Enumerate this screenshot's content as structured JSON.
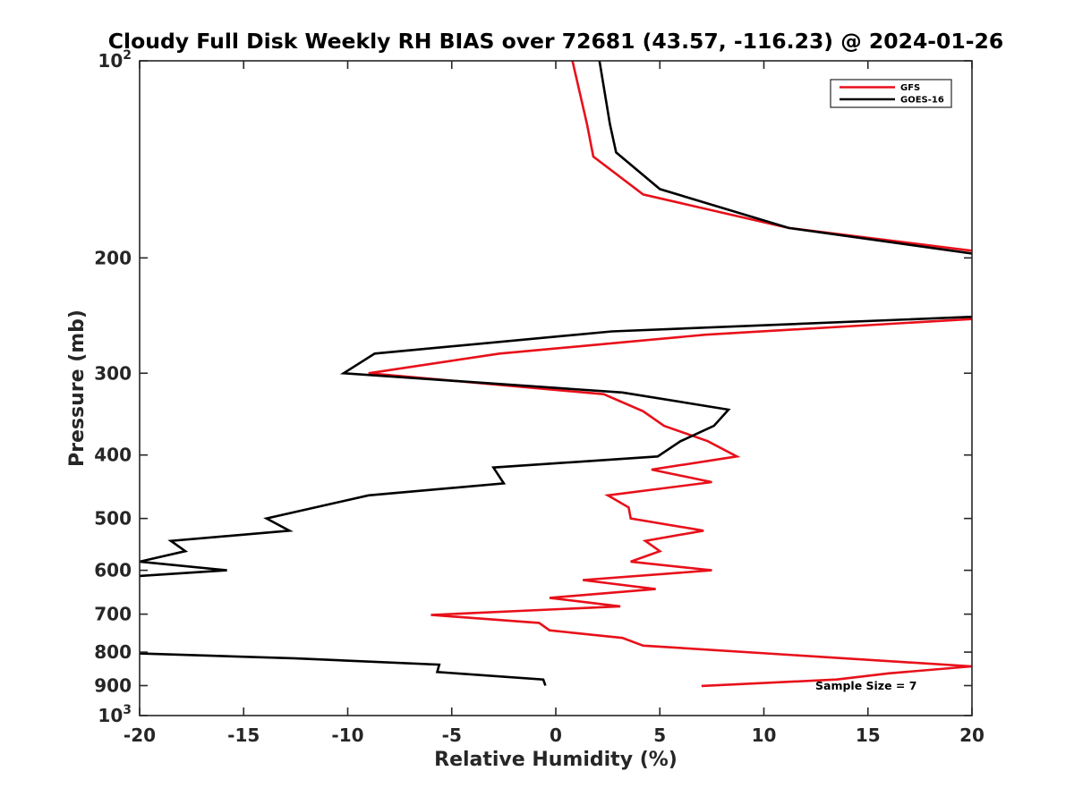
{
  "chart_data": {
    "type": "line",
    "title": "Cloudy Full Disk Weekly RH BIAS over 72681 (43.57, -116.23) @ 2024-01-26",
    "xlabel": "Relative Humidity (%)",
    "ylabel": "Pressure (mb)",
    "xlim": [
      -20,
      20
    ],
    "ylim": [
      100,
      1000
    ],
    "y_scale": "log",
    "y_reversed": true,
    "x_ticks": [
      -20,
      -15,
      -10,
      -5,
      0,
      5,
      10,
      15,
      20
    ],
    "x_tick_labels": [
      "-20",
      "-15",
      "-10",
      "-5",
      "0",
      "5",
      "10",
      "15",
      "20"
    ],
    "y_ticks": [
      100,
      200,
      300,
      400,
      500,
      600,
      700,
      800,
      900,
      1000
    ],
    "y_tick_labels": [
      {
        "base": "10",
        "exp": "2"
      },
      {
        "base": "200",
        "exp": ""
      },
      {
        "base": "300",
        "exp": ""
      },
      {
        "base": "400",
        "exp": ""
      },
      {
        "base": "500",
        "exp": ""
      },
      {
        "base": "600",
        "exp": ""
      },
      {
        "base": "700",
        "exp": ""
      },
      {
        "base": "800",
        "exp": ""
      },
      {
        "base": "900",
        "exp": ""
      },
      {
        "base": "10",
        "exp": "3"
      }
    ],
    "grid": false,
    "legend_position": "top-right",
    "annotation": "Sample Size = 7",
    "series": [
      {
        "name": "GFS",
        "color": "#e8101a",
        "points": [
          {
            "x": 0.8,
            "y": 100
          },
          {
            "x": 1.5,
            "y": 125
          },
          {
            "x": 1.8,
            "y": 140
          },
          {
            "x": 4.2,
            "y": 160
          },
          {
            "x": 11.2,
            "y": 180
          },
          {
            "x": 20.0,
            "y": 195
          },
          {
            "x": null,
            "y": null
          },
          {
            "x": 20.0,
            "y": 248
          },
          {
            "x": 7.2,
            "y": 262
          },
          {
            "x": -2.7,
            "y": 280
          },
          {
            "x": -9.0,
            "y": 300
          },
          {
            "x": 2.3,
            "y": 323
          },
          {
            "x": 4.2,
            "y": 343
          },
          {
            "x": 5.2,
            "y": 361
          },
          {
            "x": 7.3,
            "y": 381
          },
          {
            "x": 8.7,
            "y": 402
          },
          {
            "x": 4.6,
            "y": 421
          },
          {
            "x": 7.5,
            "y": 440
          },
          {
            "x": 2.5,
            "y": 461
          },
          {
            "x": 3.5,
            "y": 481
          },
          {
            "x": 3.6,
            "y": 500
          },
          {
            "x": 7.1,
            "y": 522
          },
          {
            "x": 4.3,
            "y": 541
          },
          {
            "x": 5.0,
            "y": 561
          },
          {
            "x": 3.6,
            "y": 582
          },
          {
            "x": 7.5,
            "y": 600
          },
          {
            "x": 1.3,
            "y": 621
          },
          {
            "x": 4.8,
            "y": 641
          },
          {
            "x": -0.3,
            "y": 661
          },
          {
            "x": 3.1,
            "y": 681
          },
          {
            "x": -6.0,
            "y": 702
          },
          {
            "x": -0.8,
            "y": 722
          },
          {
            "x": -0.3,
            "y": 741
          },
          {
            "x": 3.2,
            "y": 761
          },
          {
            "x": 4.2,
            "y": 782
          },
          {
            "x": 20.0,
            "y": 841
          },
          {
            "x": 16.0,
            "y": 862
          },
          {
            "x": 13.5,
            "y": 881
          },
          {
            "x": 7.0,
            "y": 901
          }
        ]
      },
      {
        "name": "GOES-16",
        "color": "#000000",
        "points": [
          {
            "x": 2.1,
            "y": 100
          },
          {
            "x": 2.6,
            "y": 125
          },
          {
            "x": 2.9,
            "y": 138
          },
          {
            "x": 5.0,
            "y": 157
          },
          {
            "x": 11.2,
            "y": 180
          },
          {
            "x": 20.0,
            "y": 197
          },
          {
            "x": null,
            "y": null
          },
          {
            "x": 20.0,
            "y": 246
          },
          {
            "x": 2.7,
            "y": 259
          },
          {
            "x": -8.7,
            "y": 280
          },
          {
            "x": -10.2,
            "y": 300
          },
          {
            "x": 3.2,
            "y": 321
          },
          {
            "x": 8.3,
            "y": 341
          },
          {
            "x": 7.6,
            "y": 361
          },
          {
            "x": 6.0,
            "y": 381
          },
          {
            "x": 4.9,
            "y": 402
          },
          {
            "x": -3.0,
            "y": 418
          },
          {
            "x": -2.5,
            "y": 442
          },
          {
            "x": -9.0,
            "y": 461
          },
          {
            "x": -13.9,
            "y": 500
          },
          {
            "x": -12.8,
            "y": 522
          },
          {
            "x": -18.5,
            "y": 541
          },
          {
            "x": -17.8,
            "y": 561
          },
          {
            "x": -20.0,
            "y": 582
          },
          {
            "x": -15.8,
            "y": 600
          },
          {
            "x": -20.0,
            "y": 612
          },
          {
            "x": null,
            "y": null
          },
          {
            "x": -20.0,
            "y": 804
          },
          {
            "x": -12.5,
            "y": 818
          },
          {
            "x": -5.6,
            "y": 836
          },
          {
            "x": -5.7,
            "y": 858
          },
          {
            "x": -0.6,
            "y": 881
          },
          {
            "x": -0.5,
            "y": 900
          }
        ]
      }
    ]
  }
}
